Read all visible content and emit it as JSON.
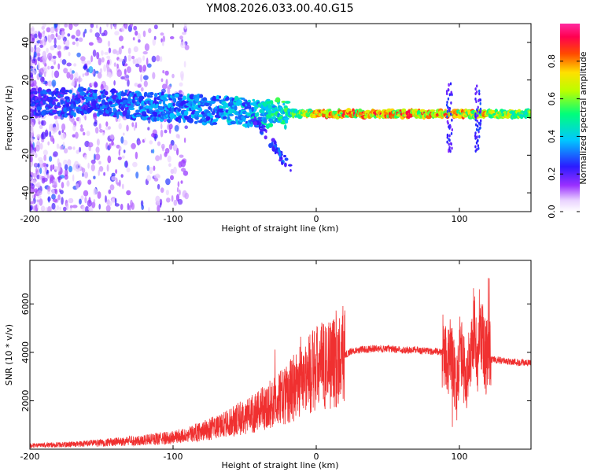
{
  "title": "YM08.2026.033.00.40.G15",
  "chart_data": [
    {
      "type": "heatmap",
      "xlabel": "Height of straight line (km)",
      "ylabel": "Frequency (Hz)",
      "xlim": [
        -200,
        150
      ],
      "ylim": [
        -50,
        50
      ],
      "xticks": [
        -200,
        -100,
        0,
        100
      ],
      "yticks": [
        -40,
        -20,
        0,
        20,
        40
      ],
      "colorbar": {
        "label": "Normalized spectral amplitude",
        "range": [
          0.0,
          1.0
        ],
        "ticks": [
          0.0,
          0.2,
          0.4,
          0.6,
          0.8
        ],
        "tick_labels": [
          "0.0",
          "0.2",
          "0.4",
          "0.6",
          "0.8"
        ],
        "colormap": "rainbow (white-violet-blue-cyan-green-yellow-red-magenta)"
      },
      "ridge": {
        "x": [
          -200,
          -150,
          -100,
          -50,
          -20,
          0,
          50,
          100,
          150
        ],
        "frequency": [
          8,
          8,
          5,
          3,
          2,
          2,
          2,
          2,
          2
        ],
        "amplitude": [
          0.3,
          0.35,
          0.4,
          0.45,
          0.6,
          0.9,
          0.95,
          0.9,
          0.7
        ]
      }
    },
    {
      "type": "line",
      "xlabel": "Height of straight line (km)",
      "ylabel": "SNR (10 * v/v)",
      "xlim": [
        -200,
        150
      ],
      "ylim": [
        0,
        7800
      ],
      "xticks": [
        -200,
        -100,
        0,
        100
      ],
      "yticks": [
        2000,
        4000,
        6000
      ],
      "line_color": "#f03030",
      "series": [
        {
          "x": [
            -200,
            -180,
            -160,
            -140,
            -120,
            -100,
            -90,
            -80,
            -70,
            -60,
            -50,
            -40,
            -30,
            -25,
            -20,
            -15,
            -10,
            0,
            10,
            20,
            25,
            30,
            40,
            50,
            60,
            70,
            80,
            90,
            95,
            98,
            100,
            105,
            110,
            113,
            115,
            118,
            120,
            125,
            130,
            140,
            150
          ],
          "values": [
            150,
            180,
            230,
            300,
            380,
            480,
            600,
            750,
            900,
            1100,
            1350,
            1600,
            1900,
            2100,
            2300,
            2600,
            2900,
            3300,
            3600,
            3900,
            4050,
            4100,
            4150,
            4150,
            4100,
            4100,
            4050,
            4000,
            3700,
            2500,
            4000,
            3000,
            5000,
            3800,
            5000,
            3900,
            3700,
            3700,
            3650,
            3600,
            3550
          ]
        }
      ]
    }
  ]
}
